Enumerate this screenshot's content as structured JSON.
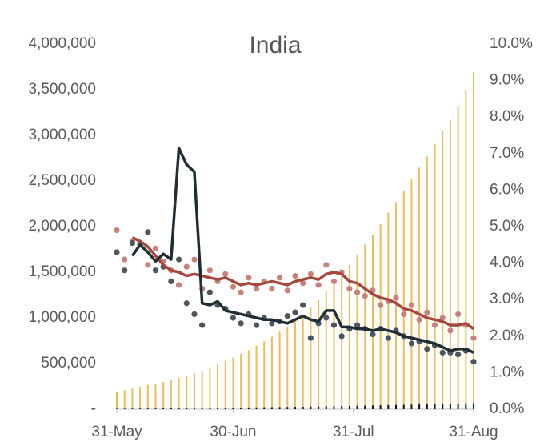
{
  "chart_data": {
    "type": "combo",
    "title": "India",
    "x": [
      0,
      2,
      4,
      6,
      8,
      10,
      12,
      14,
      16,
      18,
      20,
      22,
      24,
      26,
      28,
      30,
      32,
      34,
      36,
      38,
      40,
      42,
      44,
      46,
      48,
      50,
      52,
      54,
      56,
      58,
      60,
      62,
      64,
      66,
      68,
      70,
      72,
      74,
      76,
      78,
      80,
      82,
      84,
      86,
      88,
      90,
      92
    ],
    "xlim": [
      0,
      92
    ],
    "xticks": [
      {
        "value": 0,
        "label": "31-May"
      },
      {
        "value": 30,
        "label": "30-Jun"
      },
      {
        "value": 61,
        "label": "31-Jul"
      },
      {
        "value": 92,
        "label": "31-Aug"
      }
    ],
    "ylim": [
      0,
      4000000
    ],
    "yticks": [
      {
        "value": 0,
        "label": "-"
      },
      {
        "value": 500000,
        "label": "500,000"
      },
      {
        "value": 1000000,
        "label": "1,000,000"
      },
      {
        "value": 1500000,
        "label": "1,500,000"
      },
      {
        "value": 2000000,
        "label": "2,000,000"
      },
      {
        "value": 2500000,
        "label": "2,500,000"
      },
      {
        "value": 3000000,
        "label": "3,000,000"
      },
      {
        "value": 3500000,
        "label": "3,500,000"
      },
      {
        "value": 4000000,
        "label": "4,000,000"
      }
    ],
    "y2lim": [
      0,
      10
    ],
    "y2ticks": [
      {
        "value": 0,
        "label": "0.0%"
      },
      {
        "value": 1,
        "label": "1.0%"
      },
      {
        "value": 2,
        "label": "2.0%"
      },
      {
        "value": 3,
        "label": "3.0%"
      },
      {
        "value": 4,
        "label": "4.0%"
      },
      {
        "value": 5,
        "label": "5.0%"
      },
      {
        "value": 6,
        "label": "6.0%"
      },
      {
        "value": 7,
        "label": "7.0%"
      },
      {
        "value": 8,
        "label": "8.0%"
      },
      {
        "value": 9,
        "label": "9.0%"
      },
      {
        "value": 10,
        "label": "10.0%"
      }
    ],
    "series": [
      {
        "type": "bar",
        "color": "#eebd5c",
        "values": [
          190000,
          207000,
          226000,
          246000,
          266000,
          276000,
          298000,
          320000,
          343000,
          367000,
          395000,
          425000,
          456000,
          490000,
          528000,
          566000,
          605000,
          649000,
          697000,
          743000,
          794000,
          849000,
          906000,
          968000,
          1036000,
          1118000,
          1193000,
          1288000,
          1385000,
          1483000,
          1583000,
          1695000,
          1803000,
          1908000,
          2027000,
          2153000,
          2268000,
          2396000,
          2526000,
          2647000,
          2767000,
          2905000,
          3044000,
          3170000,
          3320000,
          3490000,
          3690000
        ]
      },
      {
        "type": "bar",
        "color": "#111111",
        "values": [
          5400,
          5800,
          6600,
          6900,
          7500,
          7700,
          8500,
          9200,
          10000,
          11900,
          12600,
          13300,
          14000,
          14900,
          15700,
          16500,
          17400,
          18700,
          19700,
          21100,
          22100,
          23200,
          24300,
          25600,
          26800,
          28100,
          29900,
          31400,
          32800,
          34200,
          35700,
          37400,
          38900,
          40700,
          42500,
          44400,
          46100,
          48000,
          49900,
          51800,
          53900,
          55800,
          57500,
          59400,
          61500,
          63500,
          65300
        ]
      },
      {
        "type": "scatter",
        "axis": "y2",
        "color": "#c98279",
        "values": [
          4.9,
          4.1,
          4.6,
          4.55,
          3.95,
          4.4,
          4.05,
          3.8,
          3.4,
          3.9,
          4.1,
          3.3,
          3.8,
          3.5,
          3.7,
          3.35,
          3.2,
          3.6,
          3.3,
          3.5,
          3.3,
          3.6,
          3.25,
          3.65,
          3.45,
          3.7,
          3.4,
          3.95,
          3.5,
          3.75,
          3.3,
          3.2,
          3.1,
          3.25,
          2.85,
          2.95,
          3.05,
          2.6,
          2.85,
          2.45,
          2.65,
          2.3,
          2.5,
          2.15,
          2.6,
          2.3,
          1.95
        ]
      },
      {
        "type": "scatter",
        "axis": "y2",
        "color": "#4d565c",
        "values": [
          4.3,
          3.8,
          4.55,
          4.5,
          4.85,
          3.8,
          3.9,
          3.5,
          4.1,
          2.9,
          2.6,
          2.3,
          3.2,
          2.85,
          2.75,
          2.5,
          2.35,
          2.6,
          2.3,
          2.5,
          2.35,
          2.4,
          2.55,
          2.65,
          2.85,
          1.95,
          2.35,
          2.5,
          2.3,
          2.0,
          2.2,
          2.3,
          2.2,
          2.05,
          2.2,
          1.95,
          2.15,
          2.0,
          1.8,
          1.85,
          1.65,
          1.75,
          1.55,
          1.55,
          1.5,
          1.6,
          1.3
        ]
      },
      {
        "type": "line",
        "axis": "y2",
        "color": "#a5473d",
        "values": [
          null,
          null,
          4.7,
          4.6,
          4.45,
          4.2,
          3.95,
          3.8,
          3.75,
          3.65,
          3.7,
          3.65,
          3.6,
          3.55,
          3.6,
          3.5,
          3.4,
          3.45,
          3.4,
          3.45,
          3.5,
          3.45,
          3.4,
          3.5,
          3.55,
          3.6,
          3.55,
          3.7,
          3.75,
          3.7,
          3.5,
          3.45,
          3.3,
          3.15,
          3.05,
          3.0,
          2.9,
          2.75,
          2.7,
          2.6,
          2.5,
          2.45,
          2.4,
          2.3,
          2.3,
          2.35,
          2.2
        ]
      },
      {
        "type": "line",
        "axis": "y2",
        "color": "#1f2e34",
        "values": [
          null,
          null,
          4.2,
          4.5,
          4.3,
          4.05,
          4.25,
          4.1,
          7.15,
          6.7,
          6.5,
          2.9,
          2.85,
          2.95,
          2.7,
          2.65,
          2.6,
          2.55,
          2.5,
          2.45,
          2.45,
          2.4,
          2.35,
          2.45,
          2.55,
          2.45,
          2.4,
          2.7,
          2.7,
          2.25,
          2.25,
          2.2,
          2.2,
          2.15,
          2.2,
          2.15,
          2.1,
          2.0,
          1.95,
          1.9,
          1.85,
          1.8,
          1.7,
          1.6,
          1.65,
          1.65,
          1.55
        ]
      }
    ]
  }
}
